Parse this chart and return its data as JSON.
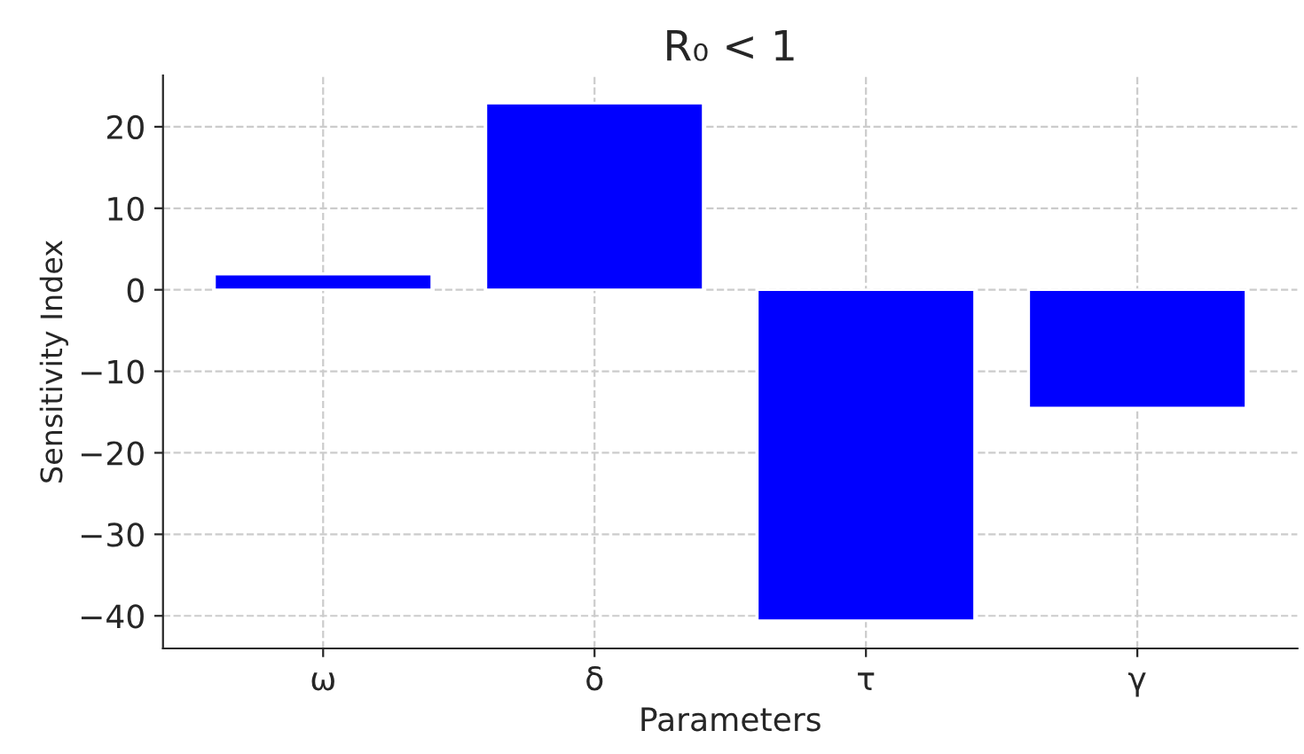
{
  "chart_data": {
    "type": "bar",
    "title": "R₀ < 1",
    "xlabel": "Parameters",
    "ylabel": "Sensitivity Index",
    "categories": [
      "ω",
      "δ",
      "τ",
      "γ"
    ],
    "values": [
      1.9,
      22.9,
      -40.6,
      -14.5
    ],
    "color": "#0000ff",
    "ylim": [
      -44,
      26.3
    ],
    "yticks": [
      -40,
      -30,
      -20,
      -10,
      0,
      10,
      20
    ],
    "grid": true
  }
}
